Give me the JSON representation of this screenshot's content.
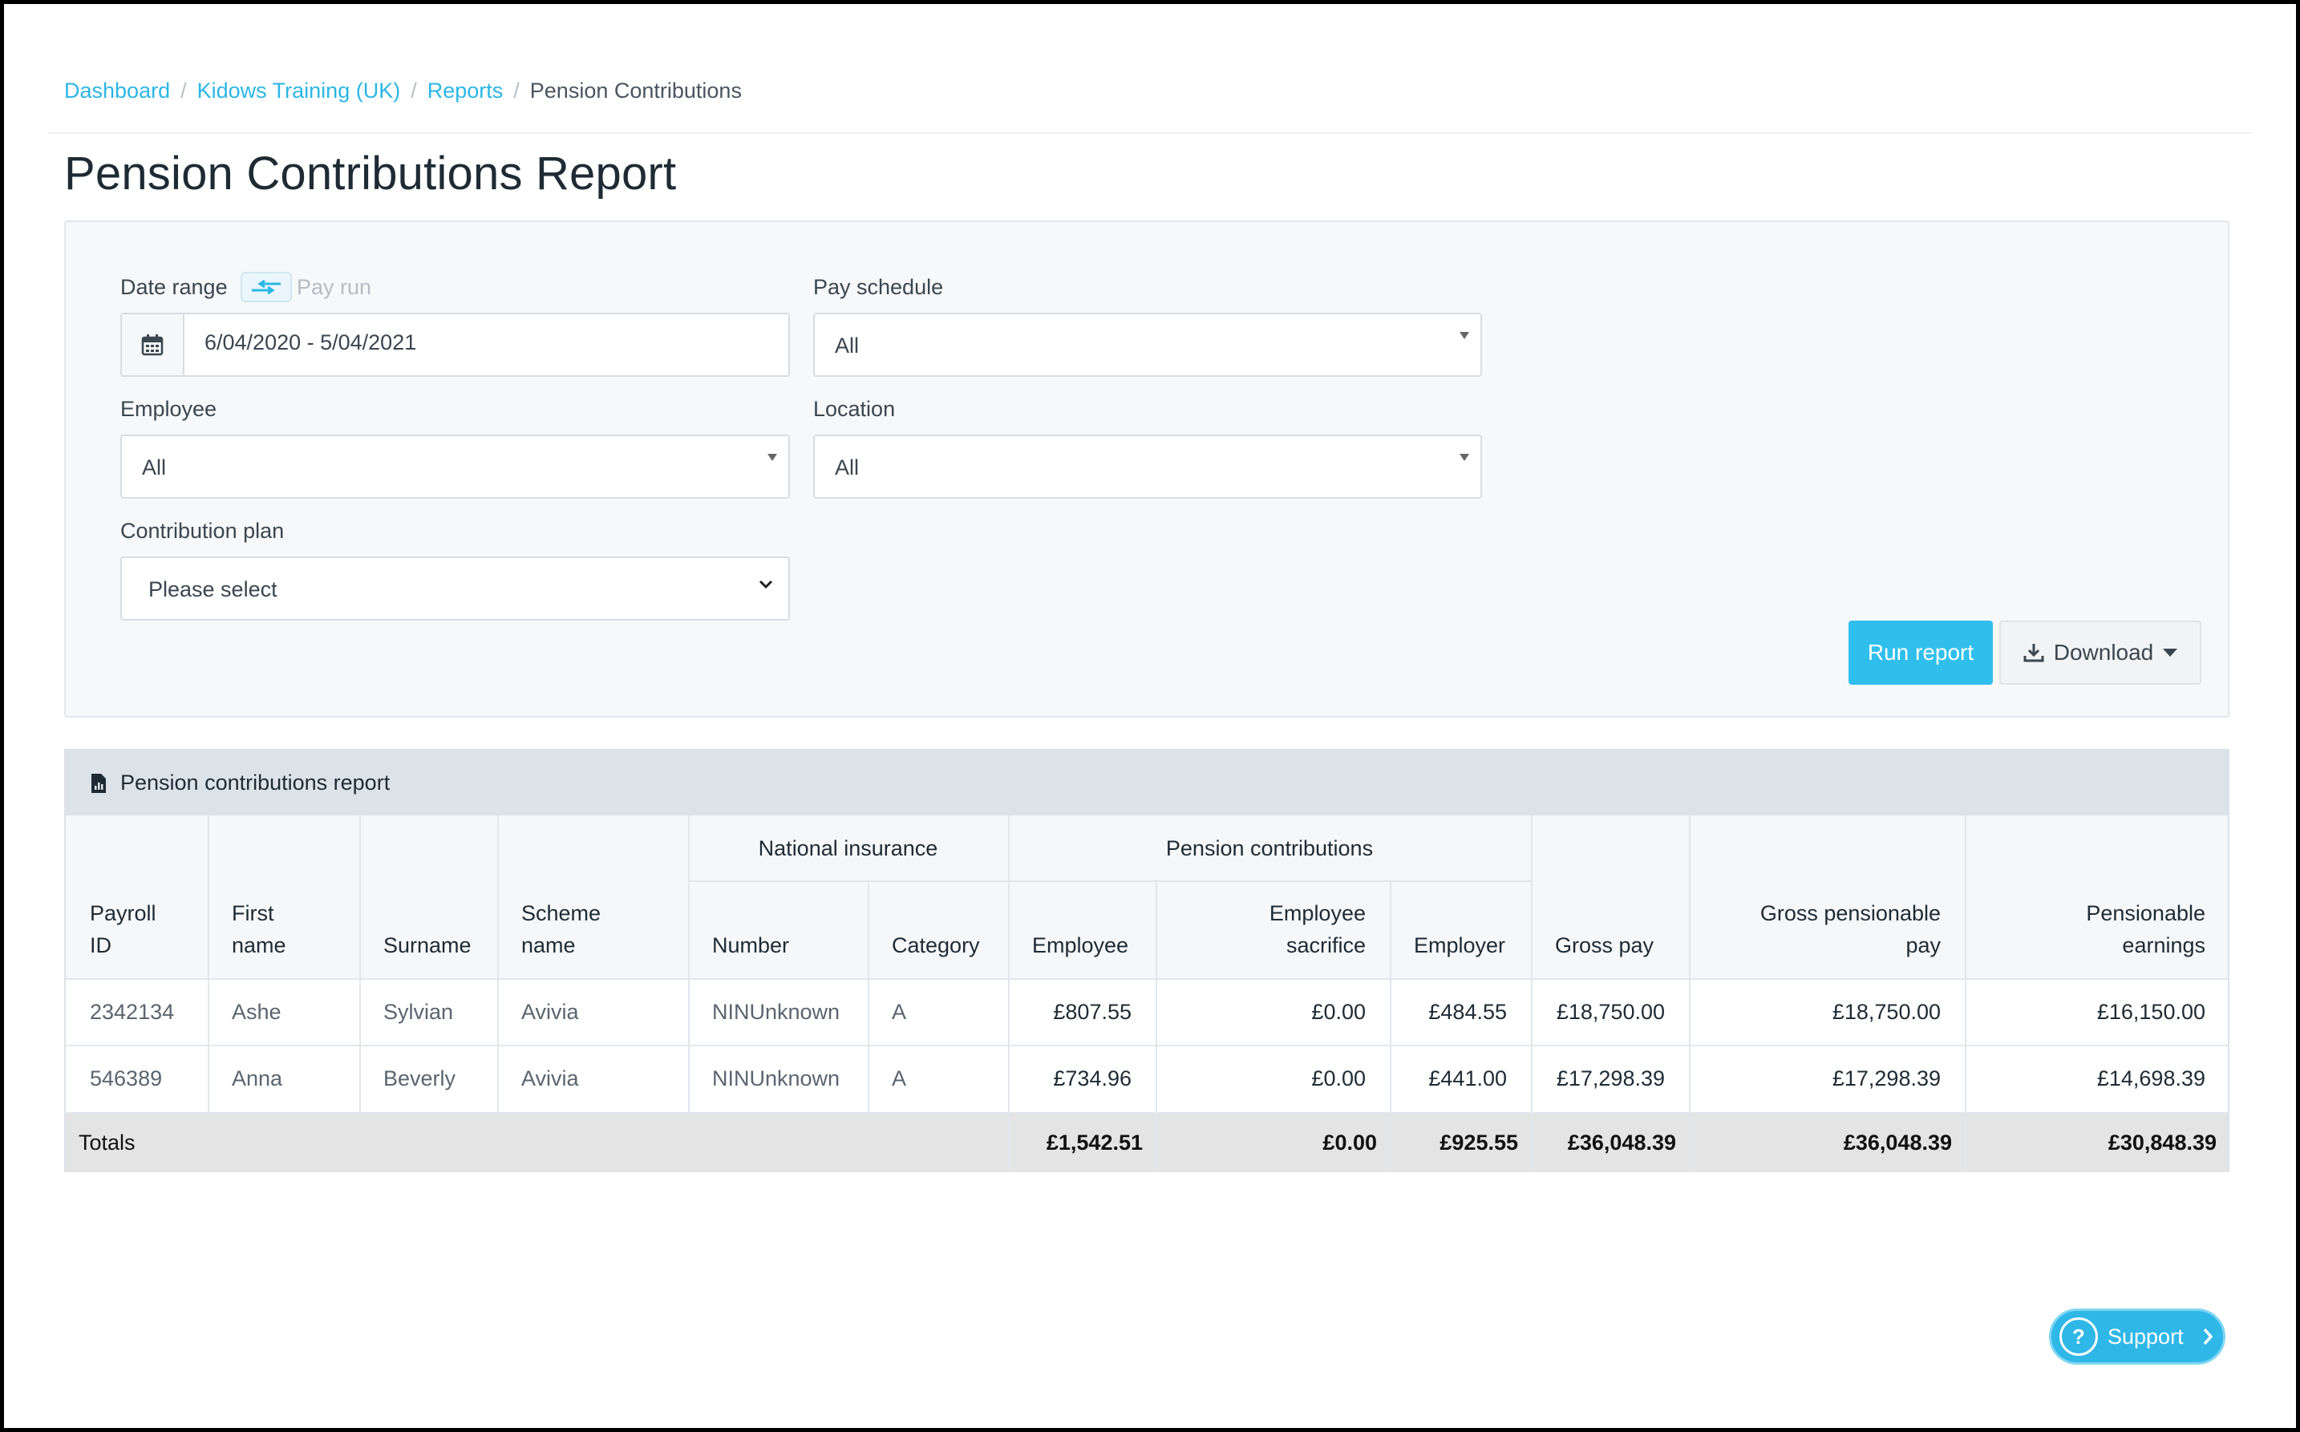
{
  "breadcrumb": {
    "items": [
      "Dashboard",
      "Kidows Training (UK)",
      "Reports"
    ],
    "current": "Pension Contributions"
  },
  "page": {
    "title": "Pension Contributions Report"
  },
  "filters": {
    "date_range": {
      "label": "Date range",
      "alt_option": "Pay run",
      "value": "6/04/2020 - 5/04/2021"
    },
    "pay_schedule": {
      "label": "Pay schedule",
      "value": "All"
    },
    "employee": {
      "label": "Employee",
      "value": "All"
    },
    "location": {
      "label": "Location",
      "value": "All"
    },
    "contribution_plan": {
      "label": "Contribution plan",
      "value": "Please select"
    },
    "run_label": "Run report",
    "download_label": "Download"
  },
  "report": {
    "title": "Pension contributions report",
    "group_headers": {
      "national_insurance": "National insurance",
      "pension_contributions": "Pension contributions"
    },
    "columns": {
      "payroll_id": [
        "Payroll ID"
      ],
      "first_name": [
        "First",
        "name"
      ],
      "surname": [
        "Surname"
      ],
      "scheme_name": [
        "Scheme",
        "name"
      ],
      "ni_number": [
        "Number"
      ],
      "ni_category": [
        "Category"
      ],
      "pc_employee": [
        "Employee"
      ],
      "pc_sacrifice": [
        "Employee",
        "sacrifice"
      ],
      "pc_employer": [
        "Employer"
      ],
      "gross_pay": [
        "Gross pay"
      ],
      "gross_pensionable": [
        "Gross pensionable",
        "pay"
      ],
      "pensionable_earnings": [
        "Pensionable",
        "earnings"
      ]
    },
    "rows": [
      {
        "payroll_id": "2342134",
        "first_name": "Ashe",
        "surname": "Sylvian",
        "scheme_name": "Avivia",
        "ni_number": "NINUnknown",
        "ni_category": "A",
        "pc_employee": "£807.55",
        "pc_sacrifice": "£0.00",
        "pc_employer": "£484.55",
        "gross_pay": "£18,750.00",
        "gross_pensionable": "£18,750.00",
        "pensionable_earnings": "£16,150.00"
      },
      {
        "payroll_id": "546389",
        "first_name": "Anna",
        "surname": "Beverly",
        "scheme_name": "Avivia",
        "ni_number": "NINUnknown",
        "ni_category": "A",
        "pc_employee": "£734.96",
        "pc_sacrifice": "£0.00",
        "pc_employer": "£441.00",
        "gross_pay": "£17,298.39",
        "gross_pensionable": "£17,298.39",
        "pensionable_earnings": "£14,698.39"
      }
    ],
    "totals": {
      "label": "Totals",
      "pc_employee": "£1,542.51",
      "pc_sacrifice": "£0.00",
      "pc_employer": "£925.55",
      "gross_pay": "£36,048.39",
      "gross_pensionable": "£36,048.39",
      "pensionable_earnings": "£30,848.39"
    }
  },
  "support": {
    "label": "Support"
  }
}
